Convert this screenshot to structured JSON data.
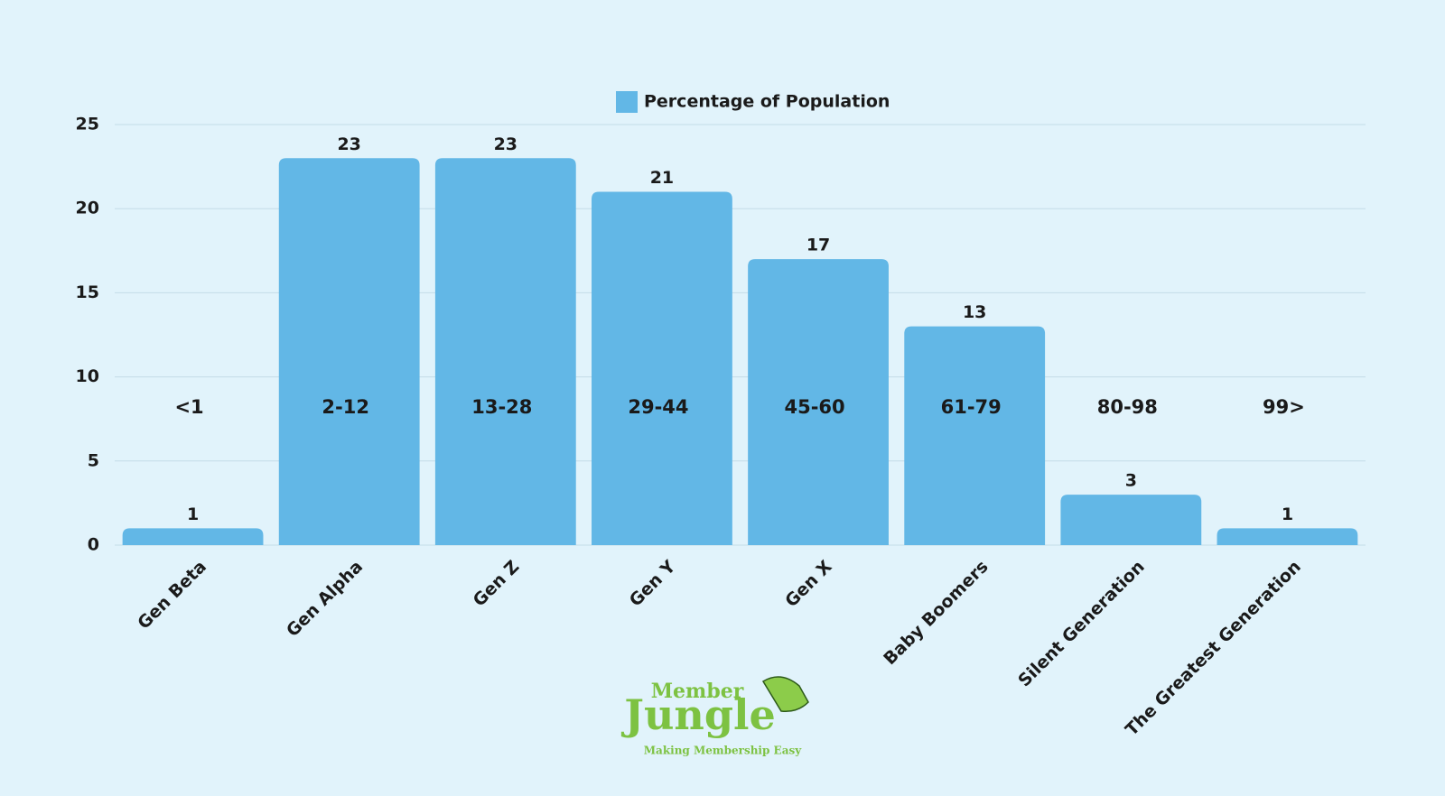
{
  "chart_data": {
    "type": "bar",
    "legend": "Percentage of Population",
    "categories": [
      "Gen Beta",
      "Gen Alpha",
      "Gen Z",
      "Gen Y",
      "Gen X",
      "Baby Boomers",
      "Silent Generation",
      "The Greatest Generation"
    ],
    "values": [
      1,
      23,
      23,
      21,
      17,
      13,
      3,
      1
    ],
    "age_ranges": [
      "<1",
      "2-12",
      "13-28",
      "29-44",
      "45-60",
      "61-79",
      "80-98",
      "99>"
    ],
    "color": "#62b7e6",
    "ylim": [
      0,
      25
    ],
    "yticks": [
      0,
      5,
      10,
      15,
      20,
      25
    ],
    "grid": true
  },
  "logo": {
    "name_top": "Member",
    "name_main": "Jungle",
    "tagline": "Making Membership Easy"
  }
}
